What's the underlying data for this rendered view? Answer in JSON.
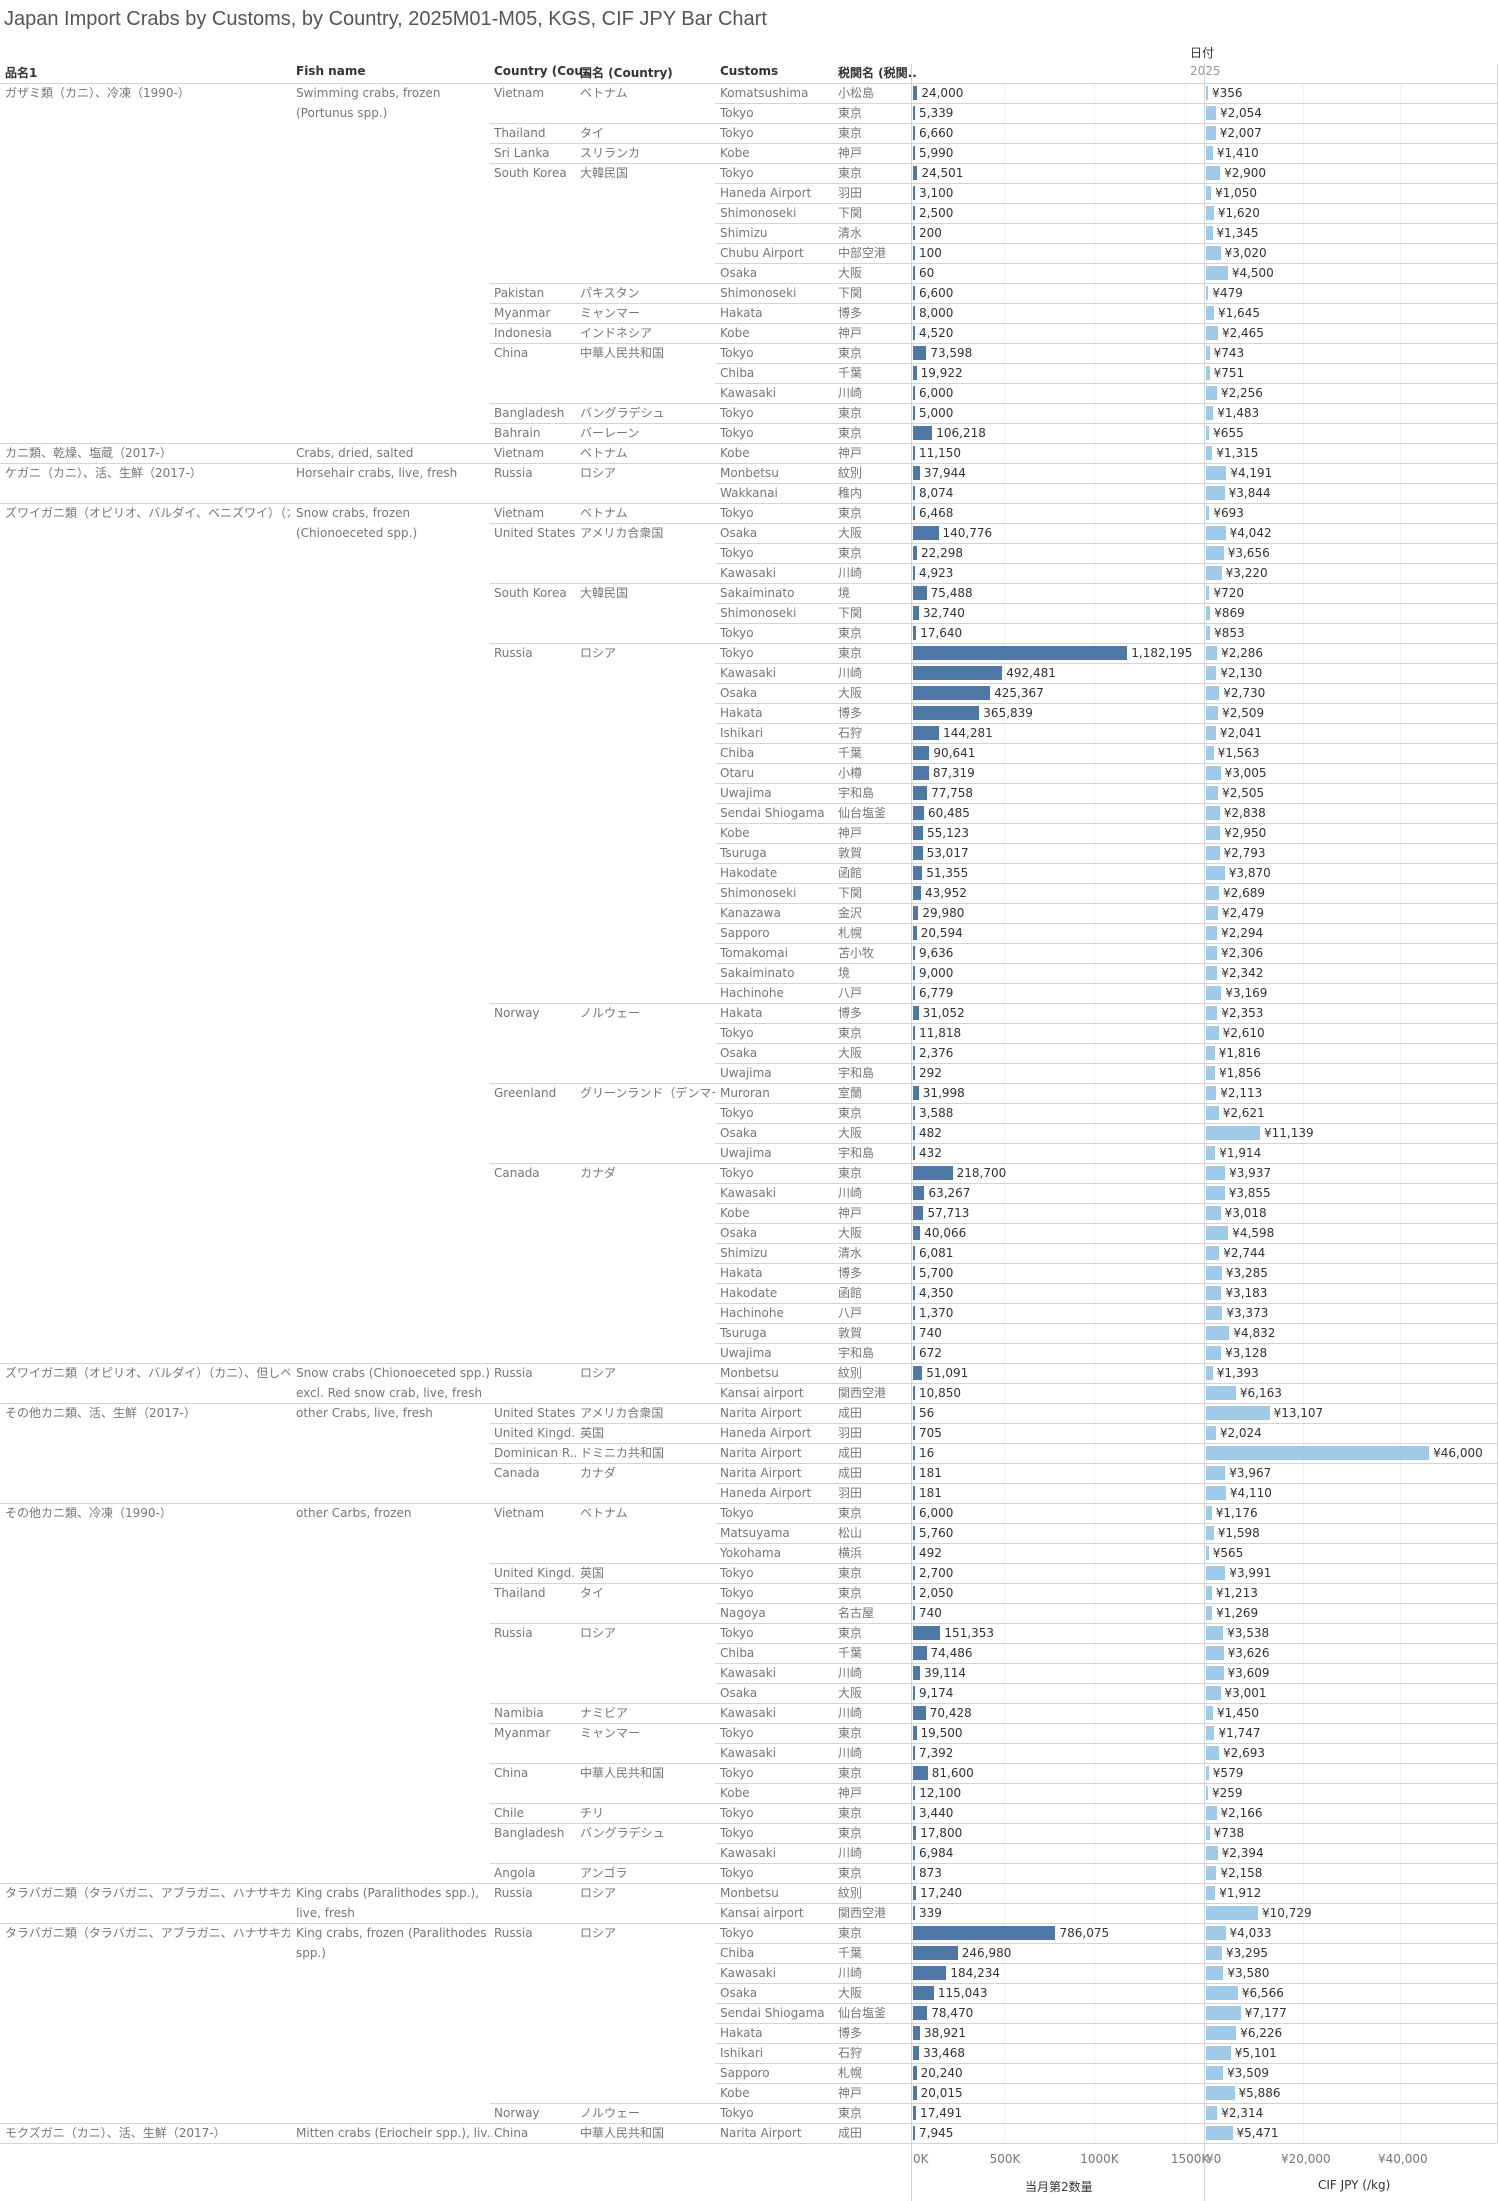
{
  "title": "Japan Import Crabs by Customs, by Country, 2025M01-M05, KGS, CIF JPY Bar Chart",
  "headers": {
    "item_jp": "品名1",
    "fish_name": "Fish name",
    "country": "Country (Cou..",
    "country_jp": "国名 (Country)",
    "customs": "Customs",
    "customs_jp": "税関名 (税関..",
    "date_label": "日付",
    "year": "2025"
  },
  "colors": {
    "qty_bar": "#4e79a7",
    "price_bar": "#a0cbe8"
  },
  "chart_data": {
    "type": "bar",
    "title": "Japan Import Crabs by Customs, by Country, 2025M01-M05, KGS, CIF JPY Bar Chart",
    "qty_axis": {
      "title": "当月第2数量",
      "ticks": [
        0,
        500000,
        1000000,
        1500000
      ],
      "tick_labels": [
        "0K",
        "500K",
        "1000K",
        "1500K"
      ],
      "range": [
        0,
        1600000
      ]
    },
    "price_axis": {
      "title": "CIF JPY (/kg)",
      "ticks": [
        0,
        20000,
        40000
      ],
      "tick_labels": [
        "¥0",
        "¥20,000",
        "¥40,000"
      ],
      "range": [
        0,
        60000
      ]
    },
    "groups": [
      {
        "item": "ガザミ類（カニ）、冷凍（1990-）",
        "fish": "Swimming crabs, frozen (Portunus spp.)",
        "countries": [
          {
            "en": "Vietnam",
            "jp": "ベトナム",
            "rows": [
              [
                "Komatsushima",
                "小松島",
                24000,
                356
              ],
              [
                "Tokyo",
                "東京",
                5339,
                2054
              ]
            ]
          },
          {
            "en": "Thailand",
            "jp": "タイ",
            "rows": [
              [
                "Tokyo",
                "東京",
                6660,
                2007
              ]
            ]
          },
          {
            "en": "Sri Lanka",
            "jp": "スリランカ",
            "rows": [
              [
                "Kobe",
                "神戸",
                5990,
                1410
              ]
            ]
          },
          {
            "en": "South Korea",
            "jp": "大韓民国",
            "rows": [
              [
                "Tokyo",
                "東京",
                24501,
                2900
              ],
              [
                "Haneda Airport",
                "羽田",
                3100,
                1050
              ],
              [
                "Shimonoseki",
                "下関",
                2500,
                1620
              ],
              [
                "Shimizu",
                "清水",
                200,
                1345
              ],
              [
                "Chubu Airport",
                "中部空港",
                100,
                3020
              ],
              [
                "Osaka",
                "大阪",
                60,
                4500
              ]
            ]
          },
          {
            "en": "Pakistan",
            "jp": "パキスタン",
            "rows": [
              [
                "Shimonoseki",
                "下関",
                6600,
                479
              ]
            ]
          },
          {
            "en": "Myanmar",
            "jp": "ミャンマー",
            "rows": [
              [
                "Hakata",
                "博多",
                8000,
                1645
              ]
            ]
          },
          {
            "en": "Indonesia",
            "jp": "インドネシア",
            "rows": [
              [
                "Kobe",
                "神戸",
                4520,
                2465
              ]
            ]
          },
          {
            "en": "China",
            "jp": "中華人民共和国",
            "rows": [
              [
                "Tokyo",
                "東京",
                73598,
                743
              ],
              [
                "Chiba",
                "千葉",
                19922,
                751
              ],
              [
                "Kawasaki",
                "川崎",
                6000,
                2256
              ]
            ]
          },
          {
            "en": "Bangladesh",
            "jp": "バングラデシュ",
            "rows": [
              [
                "Tokyo",
                "東京",
                5000,
                1483
              ]
            ]
          },
          {
            "en": "Bahrain",
            "jp": "バーレーン",
            "rows": [
              [
                "Tokyo",
                "東京",
                106218,
                655
              ]
            ]
          }
        ]
      },
      {
        "item": "カニ類、乾燥、塩蔵（2017-）",
        "fish": "Crabs, dried, salted",
        "countries": [
          {
            "en": "Vietnam",
            "jp": "ベトナム",
            "rows": [
              [
                "Kobe",
                "神戸",
                11150,
                1315
              ]
            ]
          }
        ]
      },
      {
        "item": "ケガニ（カニ）、活、生鮮（2017-）",
        "fish": "Horsehair crabs, live, fresh",
        "countries": [
          {
            "en": "Russia",
            "jp": "ロシア",
            "rows": [
              [
                "Monbetsu",
                "紋別",
                37944,
                4191
              ],
              [
                "Wakkanai",
                "稚内",
                8074,
                3844
              ]
            ]
          }
        ]
      },
      {
        "item": "ズワイガニ類（オピリオ、バルダイ、ベニズワイ）（カニ）、冷..",
        "fish": "Snow crabs, frozen (Chionoeceted spp.)",
        "countries": [
          {
            "en": "Vietnam",
            "jp": "ベトナム",
            "rows": [
              [
                "Tokyo",
                "東京",
                6468,
                693
              ]
            ]
          },
          {
            "en": "United States",
            "jp": "アメリカ合衆国",
            "rows": [
              [
                "Osaka",
                "大阪",
                140776,
                4042
              ],
              [
                "Tokyo",
                "東京",
                22298,
                3656
              ],
              [
                "Kawasaki",
                "川崎",
                4923,
                3220
              ]
            ]
          },
          {
            "en": "South Korea",
            "jp": "大韓民国",
            "rows": [
              [
                "Sakaiminato",
                "境",
                75488,
                720
              ],
              [
                "Shimonoseki",
                "下関",
                32740,
                869
              ],
              [
                "Tokyo",
                "東京",
                17640,
                853
              ]
            ]
          },
          {
            "en": "Russia",
            "jp": "ロシア",
            "rows": [
              [
                "Tokyo",
                "東京",
                1182195,
                2286
              ],
              [
                "Kawasaki",
                "川崎",
                492481,
                2130
              ],
              [
                "Osaka",
                "大阪",
                425367,
                2730
              ],
              [
                "Hakata",
                "博多",
                365839,
                2509
              ],
              [
                "Ishikari",
                "石狩",
                144281,
                2041
              ],
              [
                "Chiba",
                "千葉",
                90641,
                1563
              ],
              [
                "Otaru",
                "小樽",
                87319,
                3005
              ],
              [
                "Uwajima",
                "宇和島",
                77758,
                2505
              ],
              [
                "Sendai Shiogama",
                "仙台塩釜",
                60485,
                2838
              ],
              [
                "Kobe",
                "神戸",
                55123,
                2950
              ],
              [
                "Tsuruga",
                "敦賀",
                53017,
                2793
              ],
              [
                "Hakodate",
                "函館",
                51355,
                3870
              ],
              [
                "Shimonoseki",
                "下関",
                43952,
                2689
              ],
              [
                "Kanazawa",
                "金沢",
                29980,
                2479
              ],
              [
                "Sapporo",
                "札幌",
                20594,
                2294
              ],
              [
                "Tomakomai",
                "苫小牧",
                9636,
                2306
              ],
              [
                "Sakaiminato",
                "境",
                9000,
                2342
              ],
              [
                "Hachinohe",
                "八戸",
                6779,
                3169
              ]
            ]
          },
          {
            "en": "Norway",
            "jp": "ノルウェー",
            "rows": [
              [
                "Hakata",
                "博多",
                31052,
                2353
              ],
              [
                "Tokyo",
                "東京",
                11818,
                2610
              ],
              [
                "Osaka",
                "大阪",
                2376,
                1816
              ],
              [
                "Uwajima",
                "宇和島",
                292,
                1856
              ]
            ]
          },
          {
            "en": "Greenland",
            "jp": "グリーンランド（デンマーク）",
            "rows": [
              [
                "Muroran",
                "室蘭",
                31998,
                2113
              ],
              [
                "Tokyo",
                "東京",
                3588,
                2621
              ],
              [
                "Osaka",
                "大阪",
                482,
                11139
              ],
              [
                "Uwajima",
                "宇和島",
                432,
                1914
              ]
            ]
          },
          {
            "en": "Canada",
            "jp": "カナダ",
            "rows": [
              [
                "Tokyo",
                "東京",
                218700,
                3937
              ],
              [
                "Kawasaki",
                "川崎",
                63267,
                3855
              ],
              [
                "Kobe",
                "神戸",
                57713,
                3018
              ],
              [
                "Osaka",
                "大阪",
                40066,
                4598
              ],
              [
                "Shimizu",
                "清水",
                6081,
                2744
              ],
              [
                "Hakata",
                "博多",
                5700,
                3285
              ],
              [
                "Hakodate",
                "函館",
                4350,
                3183
              ],
              [
                "Hachinohe",
                "八戸",
                1370,
                3373
              ],
              [
                "Tsuruga",
                "敦賀",
                740,
                4832
              ],
              [
                "Uwajima",
                "宇和島",
                672,
                3128
              ]
            ]
          }
        ]
      },
      {
        "item": "ズワイガニ類（オピリオ、バルダイ）（カニ）、但しベニズワ..",
        "fish": "Snow crabs (Chionoeceted spp.) excl. Red snow crab, live, fresh",
        "countries": [
          {
            "en": "Russia",
            "jp": "ロシア",
            "rows": [
              [
                "Monbetsu",
                "紋別",
                51091,
                1393
              ],
              [
                "Kansai airport",
                "関西空港",
                10850,
                6163
              ]
            ]
          }
        ]
      },
      {
        "item": "その他カニ類、活、生鮮（2017-）",
        "fish": "other Crabs, live, fresh",
        "countries": [
          {
            "en": "United States",
            "jp": "アメリカ合衆国",
            "rows": [
              [
                "Narita Airport",
                "成田",
                56,
                13107
              ]
            ]
          },
          {
            "en": "United Kingd..",
            "jp": "英国",
            "rows": [
              [
                "Haneda Airport",
                "羽田",
                705,
                2024
              ]
            ]
          },
          {
            "en": "Dominican R..",
            "jp": "ドミニカ共和国",
            "rows": [
              [
                "Narita Airport",
                "成田",
                16,
                46000
              ]
            ]
          },
          {
            "en": "Canada",
            "jp": "カナダ",
            "rows": [
              [
                "Narita Airport",
                "成田",
                181,
                3967
              ],
              [
                "Haneda Airport",
                "羽田",
                181,
                4110
              ]
            ]
          }
        ]
      },
      {
        "item": "その他カニ類、冷凍（1990-）",
        "fish": "other Carbs, frozen",
        "countries": [
          {
            "en": "Vietnam",
            "jp": "ベトナム",
            "rows": [
              [
                "Tokyo",
                "東京",
                6000,
                1176
              ],
              [
                "Matsuyama",
                "松山",
                5760,
                1598
              ],
              [
                "Yokohama",
                "横浜",
                492,
                565
              ]
            ]
          },
          {
            "en": "United Kingd..",
            "jp": "英国",
            "rows": [
              [
                "Tokyo",
                "東京",
                2700,
                3991
              ]
            ]
          },
          {
            "en": "Thailand",
            "jp": "タイ",
            "rows": [
              [
                "Tokyo",
                "東京",
                2050,
                1213
              ],
              [
                "Nagoya",
                "名古屋",
                740,
                1269
              ]
            ]
          },
          {
            "en": "Russia",
            "jp": "ロシア",
            "rows": [
              [
                "Tokyo",
                "東京",
                151353,
                3538
              ],
              [
                "Chiba",
                "千葉",
                74486,
                3626
              ],
              [
                "Kawasaki",
                "川崎",
                39114,
                3609
              ],
              [
                "Osaka",
                "大阪",
                9174,
                3001
              ]
            ]
          },
          {
            "en": "Namibia",
            "jp": "ナミビア",
            "rows": [
              [
                "Kawasaki",
                "川崎",
                70428,
                1450
              ]
            ]
          },
          {
            "en": "Myanmar",
            "jp": "ミャンマー",
            "rows": [
              [
                "Tokyo",
                "東京",
                19500,
                1747
              ],
              [
                "Kawasaki",
                "川崎",
                7392,
                2693
              ]
            ]
          },
          {
            "en": "China",
            "jp": "中華人民共和国",
            "rows": [
              [
                "Tokyo",
                "東京",
                81600,
                579
              ],
              [
                "Kobe",
                "神戸",
                12100,
                259
              ]
            ]
          },
          {
            "en": "Chile",
            "jp": "チリ",
            "rows": [
              [
                "Tokyo",
                "東京",
                3440,
                2166
              ]
            ]
          },
          {
            "en": "Bangladesh",
            "jp": "バングラデシュ",
            "rows": [
              [
                "Tokyo",
                "東京",
                17800,
                738
              ],
              [
                "Kawasaki",
                "川崎",
                6984,
                2394
              ]
            ]
          },
          {
            "en": "Angola",
            "jp": "アンゴラ",
            "rows": [
              [
                "Tokyo",
                "東京",
                873,
                2158
              ]
            ]
          }
        ]
      },
      {
        "item": "タラバガニ類（タラバガニ、アブラガニ、ハナサキガニ）（カニ..",
        "fish": "King crabs (Paralithodes spp.), live, fresh",
        "countries": [
          {
            "en": "Russia",
            "jp": "ロシア",
            "rows": [
              [
                "Monbetsu",
                "紋別",
                17240,
                1912
              ],
              [
                "Kansai airport",
                "関西空港",
                339,
                10729
              ]
            ]
          }
        ]
      },
      {
        "item": "タラバガニ類（タラバガニ、アブラガニ、ハナサキガニ）（カニ..",
        "fish": "King crabs, frozen (Paralithodes spp.)",
        "countries": [
          {
            "en": "Russia",
            "jp": "ロシア",
            "rows": [
              [
                "Tokyo",
                "東京",
                786075,
                4033
              ],
              [
                "Chiba",
                "千葉",
                246980,
                3295
              ],
              [
                "Kawasaki",
                "川崎",
                184234,
                3580
              ],
              [
                "Osaka",
                "大阪",
                115043,
                6566
              ],
              [
                "Sendai Shiogama",
                "仙台塩釜",
                78470,
                7177
              ],
              [
                "Hakata",
                "博多",
                38921,
                6226
              ],
              [
                "Ishikari",
                "石狩",
                33468,
                5101
              ],
              [
                "Sapporo",
                "札幌",
                20240,
                3509
              ],
              [
                "Kobe",
                "神戸",
                20015,
                5886
              ]
            ]
          },
          {
            "en": "Norway",
            "jp": "ノルウェー",
            "rows": [
              [
                "Tokyo",
                "東京",
                17491,
                2314
              ]
            ]
          }
        ]
      },
      {
        "item": "モクズガニ（カニ）、活、生鮮（2017-）",
        "fish": "Mitten crabs (Eriocheir spp.), liv..",
        "countries": [
          {
            "en": "China",
            "jp": "中華人民共和国",
            "rows": [
              [
                "Narita Airport",
                "成田",
                7945,
                5471
              ]
            ]
          }
        ]
      }
    ]
  }
}
